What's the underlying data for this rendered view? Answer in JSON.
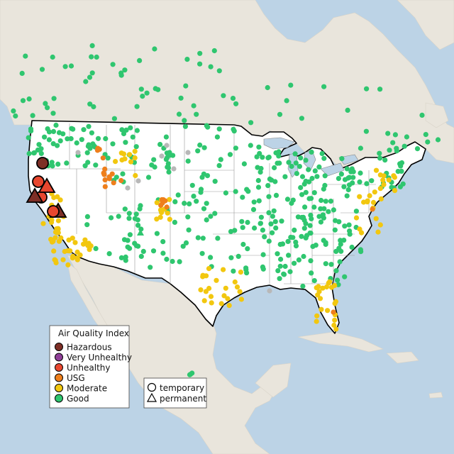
{
  "legend": {
    "title": "Air Quality Index",
    "categories": [
      {
        "key": "hazardous",
        "label": "Hazardous",
        "color": "#7e2f26"
      },
      {
        "key": "very_unhealthy",
        "label": "Very Unhealthy",
        "color": "#8f3f97"
      },
      {
        "key": "unhealthy",
        "label": "Unhealthy",
        "color": "#e8472f"
      },
      {
        "key": "usg",
        "label": "USG",
        "color": "#ee7f1c"
      },
      {
        "key": "moderate",
        "label": "Moderate",
        "color": "#f2c70f"
      },
      {
        "key": "good",
        "label": "Good",
        "color": "#2fc66f"
      }
    ],
    "no_data_color": "#b8b8b8"
  },
  "shape_legend": {
    "temporary": "temporary",
    "permanent": "permanent"
  },
  "colors": {
    "water": "#bcd3e6",
    "land": "#e9e5dc",
    "usa": "#ffffff"
  },
  "icons": [
    "circle-marker-icon",
    "triangle-marker-icon"
  ]
}
